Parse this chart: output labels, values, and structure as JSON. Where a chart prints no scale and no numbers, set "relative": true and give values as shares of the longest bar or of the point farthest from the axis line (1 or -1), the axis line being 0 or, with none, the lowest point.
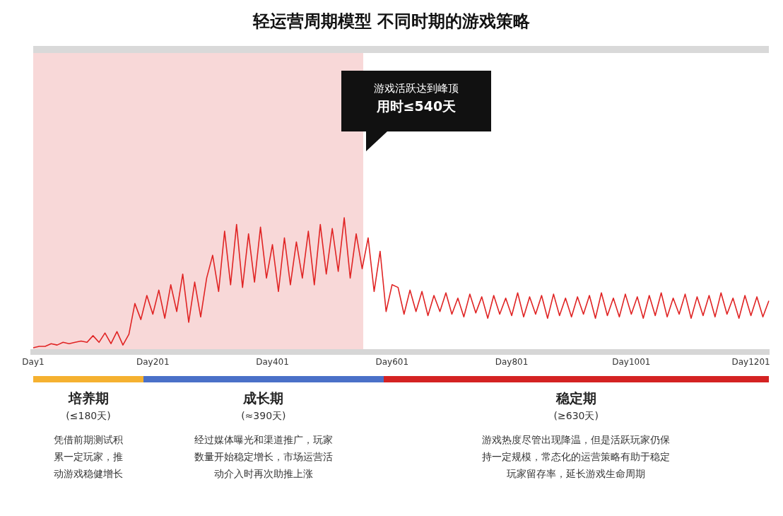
{
  "chart_data": {
    "type": "line",
    "title": "轻运营周期模型  不同时期的游戏策略",
    "relative": true,
    "grid": false,
    "legend": false,
    "marker": "none",
    "line_style": "solid",
    "categories": [
      "Day1",
      null,
      null,
      null,
      null,
      null,
      null,
      null,
      null,
      null,
      null,
      null,
      null,
      null,
      null,
      null,
      null,
      null,
      null,
      null,
      "Day201",
      null,
      null,
      null,
      null,
      null,
      null,
      null,
      null,
      null,
      null,
      null,
      null,
      null,
      null,
      null,
      null,
      null,
      null,
      null,
      "Day401",
      null,
      null,
      null,
      null,
      null,
      null,
      null,
      null,
      null,
      null,
      null,
      null,
      null,
      null,
      null,
      null,
      null,
      null,
      null,
      "Day601",
      null,
      null,
      null,
      null,
      null,
      null,
      null,
      null,
      null,
      null,
      null,
      null,
      null,
      null,
      null,
      null,
      null,
      null,
      null,
      "Day801",
      null,
      null,
      null,
      null,
      null,
      null,
      null,
      null,
      null,
      null,
      null,
      null,
      null,
      null,
      null,
      null,
      null,
      null,
      null,
      "Day1001",
      null,
      null,
      null,
      null,
      null,
      null,
      null,
      null,
      null,
      null,
      null,
      null,
      null,
      null,
      null,
      null,
      null,
      null,
      null,
      "Day1201",
      null,
      null,
      null
    ],
    "series": [
      {
        "color": "#e02424",
        "values": [
          0.03,
          0.04,
          0.04,
          0.06,
          0.05,
          0.07,
          0.06,
          0.07,
          0.08,
          0.07,
          0.12,
          0.07,
          0.14,
          0.06,
          0.15,
          0.05,
          0.13,
          0.36,
          0.24,
          0.42,
          0.28,
          0.46,
          0.25,
          0.5,
          0.3,
          0.58,
          0.22,
          0.52,
          0.26,
          0.55,
          0.72,
          0.45,
          0.9,
          0.5,
          0.95,
          0.48,
          0.88,
          0.52,
          0.93,
          0.55,
          0.8,
          0.45,
          0.85,
          0.5,
          0.82,
          0.55,
          0.9,
          0.5,
          0.95,
          0.58,
          0.92,
          0.6,
          1.0,
          0.55,
          0.88,
          0.62,
          0.85,
          0.45,
          0.75,
          0.3,
          0.5,
          0.48,
          0.28,
          0.46,
          0.3,
          0.45,
          0.27,
          0.42,
          0.3,
          0.44,
          0.28,
          0.4,
          0.26,
          0.43,
          0.29,
          0.41,
          0.25,
          0.42,
          0.28,
          0.4,
          0.27,
          0.44,
          0.26,
          0.41,
          0.28,
          0.42,
          0.25,
          0.43,
          0.27,
          0.4,
          0.26,
          0.41,
          0.28,
          0.42,
          0.25,
          0.44,
          0.27,
          0.4,
          0.26,
          0.43,
          0.28,
          0.41,
          0.25,
          0.42,
          0.27,
          0.44,
          0.26,
          0.4,
          0.28,
          0.43,
          0.25,
          0.41,
          0.27,
          0.42,
          0.26,
          0.44,
          0.28,
          0.4,
          0.25,
          0.42,
          0.27,
          0.41,
          0.26,
          0.38
        ]
      }
    ],
    "annotations": [
      "游戏活跃达到峰顶",
      "用时≤540天",
      "培养期",
      "(≤180天)",
      "凭借前期测试积累一定玩家，推动游戏稳健增长",
      "成长期",
      "(≈390天)",
      "经过媒体曝光和渠道推广，玩家数量开始稳定增长，市场运营活动介入时再次助推上涨",
      "稳定期",
      "(≥630天)",
      "游戏热度尽管出现降温，但是活跃玩家仍保持一定规模，常态化的运营策略有助于稳定玩家留存率，延长游戏生命周期"
    ]
  }
}
